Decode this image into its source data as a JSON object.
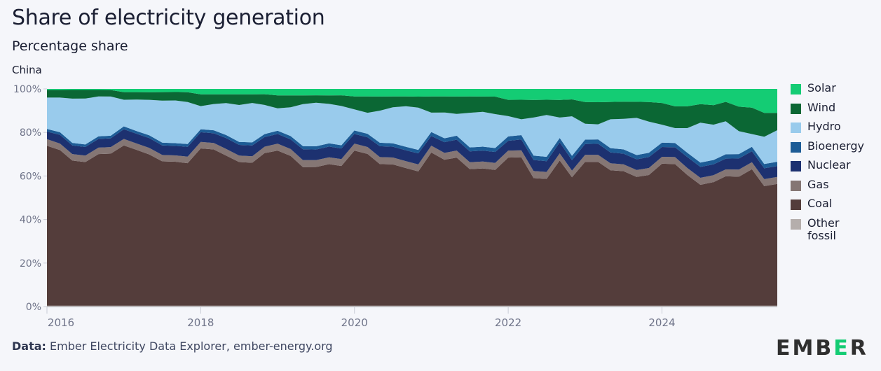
{
  "header": {
    "title": "Share of electricity generation",
    "subtitle": "Percentage share",
    "region": "China"
  },
  "footer": {
    "source_label": "Data:",
    "source_text": "Ember Electricity Data Explorer, ember-energy.org",
    "logo_text_left": "EMB",
    "logo_text_green": "E",
    "logo_text_right": "R"
  },
  "colors": {
    "Solar": "#14cc74",
    "Wind": "#0b6734",
    "Hydro": "#99cbec",
    "Bioenergy": "#1d5c96",
    "Nuclear": "#1d3170",
    "Gas": "#857674",
    "Coal": "#543d3b",
    "Other fossil": "#b5aeac",
    "logo_green": "#14cc74"
  },
  "legend": [
    {
      "label": "Solar"
    },
    {
      "label": "Wind"
    },
    {
      "label": "Hydro"
    },
    {
      "label": "Bioenergy"
    },
    {
      "label": "Nuclear"
    },
    {
      "label": "Gas"
    },
    {
      "label": "Coal"
    },
    {
      "label": "Other fossil"
    }
  ],
  "chart_data": {
    "type": "area",
    "stacked": true,
    "title": "Share of electricity generation",
    "subtitle": "Percentage share",
    "xlabel": "",
    "ylabel": "",
    "ylim": [
      0,
      100
    ],
    "yticks": [
      0,
      20,
      40,
      60,
      80,
      100
    ],
    "ytick_labels": [
      "0%",
      "20%",
      "40%",
      "60%",
      "80%",
      "100%"
    ],
    "xlim": [
      2016.0,
      2025.5
    ],
    "xticks": [
      2016,
      2018,
      2020,
      2022,
      2024
    ],
    "xtick_labels": [
      "2016",
      "2018",
      "2020",
      "2022",
      "2024"
    ],
    "grid": false,
    "legend_position": "right",
    "x": [
      2016.0,
      2016.17,
      2016.33,
      2016.5,
      2016.67,
      2016.83,
      2017.0,
      2017.17,
      2017.33,
      2017.5,
      2017.67,
      2017.83,
      2018.0,
      2018.17,
      2018.33,
      2018.5,
      2018.67,
      2018.83,
      2019.0,
      2019.17,
      2019.33,
      2019.5,
      2019.67,
      2019.83,
      2020.0,
      2020.17,
      2020.33,
      2020.5,
      2020.67,
      2020.83,
      2021.0,
      2021.17,
      2021.33,
      2021.5,
      2021.67,
      2021.83,
      2022.0,
      2022.17,
      2022.33,
      2022.5,
      2022.67,
      2022.83,
      2023.0,
      2023.17,
      2023.33,
      2023.5,
      2023.67,
      2023.83,
      2024.0,
      2024.17,
      2024.33,
      2024.5,
      2024.67,
      2024.83,
      2025.0,
      2025.17,
      2025.33,
      2025.5
    ],
    "series": [
      {
        "name": "Other fossil",
        "values": [
          0.4,
          0.4,
          0.4,
          0.4,
          0.4,
          0.4,
          0.4,
          0.4,
          0.4,
          0.4,
          0.4,
          0.4,
          0.4,
          0.4,
          0.4,
          0.4,
          0.4,
          0.4,
          0.4,
          0.4,
          0.4,
          0.4,
          0.4,
          0.4,
          0.4,
          0.4,
          0.4,
          0.4,
          0.4,
          0.4,
          0.4,
          0.4,
          0.4,
          0.4,
          0.4,
          0.4,
          0.4,
          0.4,
          0.4,
          0.4,
          0.4,
          0.4,
          0.4,
          0.4,
          0.4,
          0.4,
          0.4,
          0.4,
          0.4,
          0.4,
          0.4,
          0.4,
          0.4,
          0.4,
          0.4,
          0.4,
          0.4,
          0.4
        ]
      },
      {
        "name": "Coal",
        "values": [
          73.5,
          71.5,
          67,
          67,
          70,
          69.5,
          74,
          73,
          69.5,
          68,
          68.5,
          65.5,
          73,
          72.5,
          69,
          67,
          66,
          71.5,
          72,
          69.5,
          64,
          65,
          66,
          65.5,
          72,
          70,
          65,
          65.5,
          63.5,
          61,
          71,
          68,
          68,
          63,
          63,
          62,
          68,
          68.5,
          58,
          58.5,
          66,
          61,
          66,
          65,
          62.5,
          63,
          60,
          60,
          65.5,
          65,
          60,
          55.5,
          57,
          60,
          58,
          62,
          55,
          56
        ]
      },
      {
        "name": "Gas",
        "values": [
          3,
          3,
          3,
          3,
          3,
          3,
          3,
          3,
          3,
          3,
          3,
          3,
          3,
          3,
          3,
          3,
          3,
          3,
          3.2,
          3.2,
          3.2,
          3.2,
          3.2,
          3.2,
          3.2,
          3.2,
          3.2,
          3.2,
          3.2,
          3.2,
          3.2,
          3.2,
          3.2,
          3.2,
          3.2,
          3.2,
          3.2,
          3.2,
          3.2,
          3.2,
          3.2,
          3.2,
          3.2,
          3.2,
          3.2,
          3.2,
          3.2,
          3.2,
          3.2,
          3.2,
          3.2,
          3.2,
          3.2,
          3.2,
          3.2,
          3.2,
          3.2,
          3.2
        ]
      },
      {
        "name": "Nuclear",
        "values": [
          3.5,
          4,
          4,
          4,
          4,
          4,
          4.5,
          4.5,
          4.5,
          4.5,
          4.5,
          4.5,
          4.5,
          4.5,
          5,
          5,
          5,
          4.5,
          4.5,
          4.5,
          5,
          5,
          5,
          5,
          4.5,
          4.5,
          5,
          5,
          5,
          5,
          4.5,
          5,
          5,
          5,
          5,
          5,
          4.5,
          5,
          5,
          5,
          5,
          5,
          5,
          5,
          5,
          5,
          5,
          5,
          4.5,
          4.5,
          5,
          5,
          5,
          5,
          5,
          5,
          5,
          5
        ]
      },
      {
        "name": "Bioenergy",
        "values": [
          1.2,
          1.2,
          1.2,
          1.2,
          1.2,
          1.2,
          1.3,
          1.3,
          1.3,
          1.3,
          1.3,
          1.3,
          1.4,
          1.4,
          1.4,
          1.4,
          1.4,
          1.4,
          1.5,
          1.5,
          1.5,
          1.5,
          1.5,
          1.5,
          1.6,
          1.6,
          1.6,
          1.6,
          1.6,
          1.6,
          1.8,
          1.8,
          1.8,
          1.8,
          1.8,
          1.8,
          2,
          2,
          2,
          2,
          2,
          2,
          2,
          2,
          2,
          2,
          2,
          2,
          2,
          2,
          2,
          2,
          2,
          2,
          2,
          2,
          2,
          2
        ]
      },
      {
        "name": "Hydro",
        "values": [
          14.4,
          15.9,
          20.4,
          21.4,
          18.4,
          17.9,
          12.3,
          14.8,
          16.3,
          19.8,
          20.3,
          19.3,
          10.7,
          12.2,
          14.7,
          17.2,
          18.2,
          13.7,
          10.4,
          13.4,
          19.4,
          20.4,
          18.4,
          18.4,
          9.8,
          9.7,
          14.7,
          16.7,
          18.7,
          19.2,
          9,
          12,
          10,
          16,
          16,
          15.5,
          9.3,
          7.3,
          17.3,
          19.3,
          9.3,
          18.8,
          7.3,
          6.8,
          13.3,
          14.3,
          17.3,
          14.3,
          8.3,
          6.8,
          11.3,
          18.3,
          16.3,
          15.3,
          10.3,
          5.8,
          12.5,
          14.5
        ]
      },
      {
        "name": "Wind",
        "values": [
          3.5,
          3.5,
          4,
          4,
          3,
          3,
          3.5,
          3.5,
          3.5,
          4,
          4,
          4.5,
          5.5,
          4.5,
          4,
          5,
          4,
          5,
          6,
          5.5,
          4,
          3.5,
          4,
          5,
          6,
          7.5,
          6.5,
          5,
          4.5,
          5,
          7.5,
          7.5,
          8,
          7.5,
          7,
          8,
          7.5,
          9,
          8,
          7,
          8,
          8,
          10,
          10,
          8,
          8,
          7.5,
          9,
          10,
          10,
          10,
          8.5,
          9,
          9,
          11,
          12,
          11,
          8
        ]
      },
      {
        "name": "Solar",
        "values": [
          0.5,
          0.5,
          0.5,
          0.5,
          0.5,
          0.5,
          1.5,
          1.5,
          1.5,
          1.5,
          1.5,
          1.5,
          2.5,
          2.5,
          2.5,
          2.5,
          2.5,
          2.5,
          3,
          3,
          3,
          3,
          3,
          3,
          3.5,
          3.5,
          3.5,
          3.5,
          3.5,
          3.5,
          3.5,
          3.5,
          3.5,
          3.5,
          3.5,
          3.5,
          5,
          5,
          5,
          5,
          5,
          5,
          6,
          6,
          6,
          6,
          6,
          6,
          6.5,
          8,
          8,
          7,
          7.5,
          6,
          8,
          8.5,
          11,
          11
        ]
      }
    ]
  }
}
